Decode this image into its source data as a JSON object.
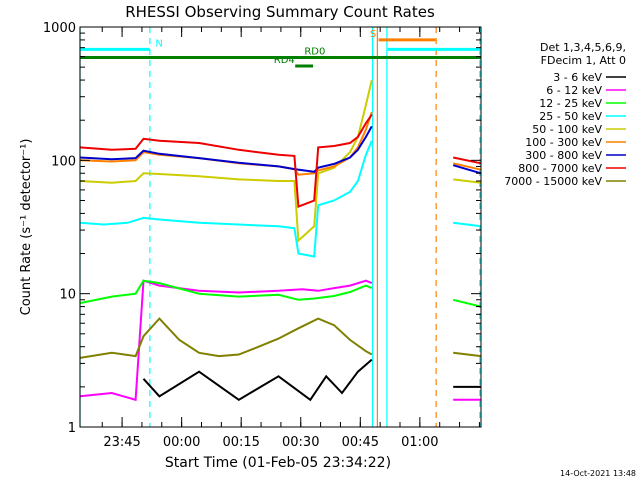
{
  "chart_data": {
    "type": "line",
    "title": "RHESSI Observing Summary Count Rates",
    "xlabel": "Start Time (01-Feb-05 23:34:22)",
    "ylabel": "Count Rate (s⁻¹ detector⁻¹)",
    "x_unit": "minutes after 23:34:22",
    "xlim": [
      0,
      101
    ],
    "ylim": [
      1,
      1000
    ],
    "yscale": "log",
    "grid": false,
    "legend_position": "right",
    "x_ticks": [
      {
        "label": "23:45",
        "x": 10.6
      },
      {
        "label": "00:00",
        "x": 25.6
      },
      {
        "label": "00:15",
        "x": 40.6
      },
      {
        "label": "00:30",
        "x": 55.6
      },
      {
        "label": "00:45",
        "x": 70.6
      },
      {
        "label": "01:00",
        "x": 85.6
      }
    ],
    "y_ticks": [
      {
        "label": "1",
        "y": 1
      },
      {
        "label": "10",
        "y": 10
      },
      {
        "label": "100",
        "y": 100
      },
      {
        "label": "1000",
        "y": 1000
      }
    ],
    "legend_header": [
      "Det 1,3,4,5,6,9,",
      "FDecim 1, Att 0"
    ],
    "series": [
      {
        "name": "3 - 6 keV",
        "color": "#000000",
        "x": [
          16,
          20,
          30,
          40,
          50,
          58,
          62,
          66,
          70,
          73.5
        ],
        "y": [
          2.3,
          1.7,
          2.6,
          1.6,
          2.4,
          1.6,
          2.4,
          1.8,
          2.6,
          3.2
        ]
      },
      {
        "name": "6 - 12 keV",
        "color": "#ff00ff",
        "x": [
          0,
          8,
          14,
          16,
          20,
          30,
          40,
          50,
          56,
          60,
          64,
          68,
          72,
          73.5
        ],
        "y": [
          1.7,
          1.8,
          1.6,
          12.5,
          11.5,
          10.5,
          10.2,
          10.5,
          10.8,
          10.5,
          11.0,
          11.5,
          12.5,
          12.0
        ]
      },
      {
        "name": "12 - 25 keV",
        "color": "#00ff00",
        "x": [
          0,
          8,
          14,
          16,
          20,
          30,
          40,
          50,
          55,
          59,
          64,
          68,
          72,
          73.5
        ],
        "y": [
          8.5,
          9.5,
          10,
          12.5,
          12,
          10,
          9.5,
          9.8,
          9,
          9.2,
          9.6,
          10.3,
          11.5,
          11.0
        ]
      },
      {
        "name": "25 - 50 keV",
        "color": "#00ffff",
        "x": [
          0,
          6,
          12,
          16,
          20,
          30,
          40,
          50,
          54,
          55,
          59,
          60,
          64,
          68,
          70,
          72,
          73.5
        ],
        "y": [
          34,
          33,
          34,
          37,
          36,
          34,
          33,
          32,
          31,
          20,
          19,
          46,
          50,
          58,
          70,
          110,
          140
        ]
      },
      {
        "name": "50 - 100 keV",
        "color": "#cccc00",
        "x": [
          0,
          8,
          14,
          16,
          20,
          30,
          40,
          50,
          54,
          55,
          59,
          60,
          64,
          68,
          70,
          72,
          73.5
        ],
        "y": [
          70,
          68,
          70,
          80,
          79,
          76,
          72,
          70,
          70,
          25,
          32,
          80,
          88,
          115,
          150,
          260,
          400
        ]
      },
      {
        "name": "100 - 300 keV",
        "color": "#ff8000",
        "x": [
          0,
          8,
          14,
          16,
          20,
          30,
          40,
          50,
          54,
          55,
          59,
          60,
          64,
          68,
          70,
          72,
          73.5
        ],
        "y": [
          100,
          98,
          100,
          115,
          110,
          104,
          95,
          90,
          86,
          78,
          80,
          84,
          90,
          105,
          125,
          170,
          230
        ]
      },
      {
        "name": "300 - 800 keV",
        "color": "#0000cc",
        "x": [
          0,
          8,
          14,
          16,
          20,
          30,
          40,
          50,
          54,
          59,
          60,
          64,
          68,
          70,
          72,
          73.5
        ],
        "y": [
          105,
          102,
          104,
          118,
          112,
          104,
          96,
          90,
          86,
          82,
          88,
          94,
          105,
          120,
          150,
          180
        ]
      },
      {
        "name": "800 - 7000 keV",
        "color": "#ee0000",
        "x": [
          0,
          8,
          14,
          16,
          20,
          30,
          40,
          50,
          54,
          55,
          59,
          60,
          64,
          68,
          70,
          72,
          73.5
        ],
        "y": [
          125,
          120,
          122,
          145,
          140,
          135,
          120,
          110,
          108,
          45,
          50,
          125,
          128,
          135,
          150,
          190,
          220
        ]
      },
      {
        "name": "7000 - 15000 keV",
        "color": "#808000",
        "x": [
          0,
          8,
          14,
          16,
          20,
          25,
          30,
          35,
          40,
          45,
          50,
          55,
          60,
          64,
          68,
          72,
          73.5
        ],
        "y": [
          3.3,
          3.6,
          3.4,
          4.8,
          6.5,
          4.5,
          3.6,
          3.4,
          3.5,
          4.0,
          4.6,
          5.5,
          6.5,
          5.8,
          4.5,
          3.7,
          3.5
        ]
      }
    ],
    "data_gap": [
      75,
      94
    ],
    "series_after_gap": {
      "x": [
        94,
        101
      ],
      "y": {
        "3 - 6 keV": [
          2.0,
          2.0
        ],
        "6 - 12 keV": [
          1.6,
          1.6
        ],
        "12 - 25 keV": [
          9,
          8
        ],
        "25 - 50 keV": [
          34,
          32
        ],
        "50 - 100 keV": [
          72,
          68
        ],
        "100 - 300 keV": [
          95,
          85
        ],
        "300 - 800 keV": [
          92,
          80
        ],
        "800 - 7000 keV": [
          105,
          95
        ],
        "7000 - 15000 keV": [
          3.6,
          3.4
        ]
      }
    },
    "vertical_markers": [
      {
        "x": 0,
        "color": "#00ffff",
        "style": "solid"
      },
      {
        "x": 17.6,
        "color": "#00ffff",
        "style": "dashed"
      },
      {
        "x": 73.7,
        "color": "#00ffff",
        "style": "solid"
      },
      {
        "x": 74.9,
        "color": "#ff8000",
        "style": "solid"
      },
      {
        "x": 77.3,
        "color": "#00ffff",
        "style": "solid"
      },
      {
        "x": 89.7,
        "color": "#ff8000",
        "style": "dashed"
      },
      {
        "x": 100.7,
        "color": "#00ffff",
        "style": "dashed"
      }
    ],
    "flag_bars": [
      {
        "label": "N",
        "color": "#00ffff",
        "x": [
          0,
          17.5
        ],
        "y": 680,
        "label_x": 19
      },
      {
        "label": "N",
        "color": "#00ffff",
        "x": [
          77.5,
          101
        ],
        "y": 680
      },
      {
        "label": "S",
        "color": "#ff8000",
        "x": [
          75.2,
          89.5
        ],
        "y": 800,
        "label_x": 73
      },
      {
        "label": "RD0",
        "color": "#008000",
        "x": [
          0,
          101
        ],
        "y": 590,
        "label_x": 56.5
      },
      {
        "label": "RD4",
        "color": "#008000",
        "x": [
          54.2,
          58.7
        ],
        "y": 510,
        "label_x": 48.8
      }
    ],
    "timestamp": "14-Oct-2021 13:48"
  }
}
